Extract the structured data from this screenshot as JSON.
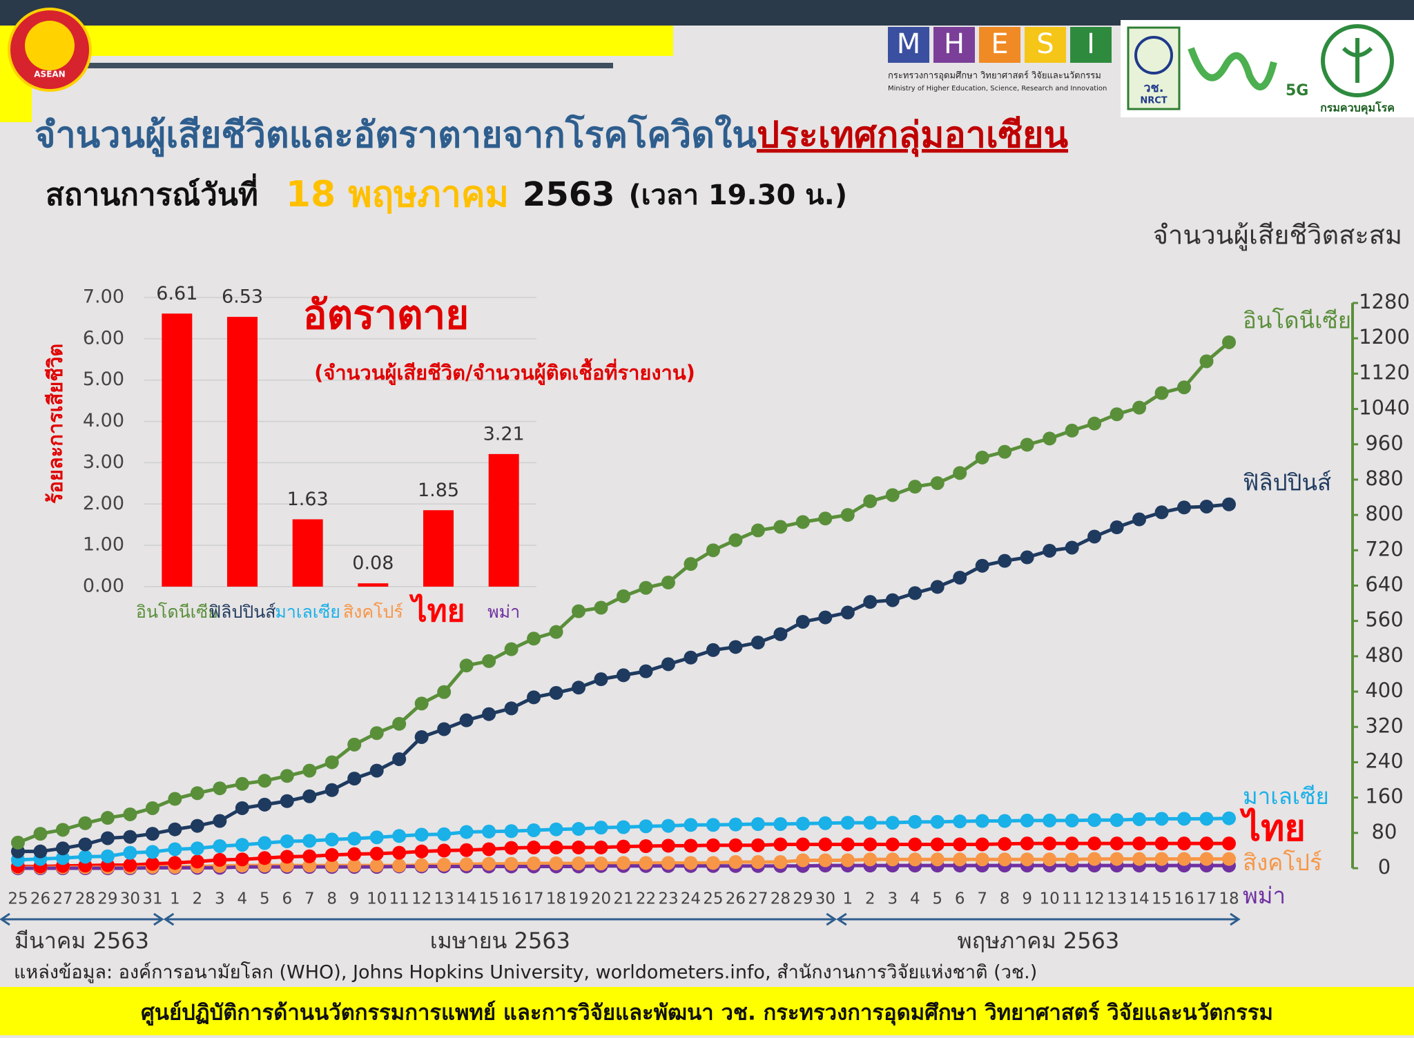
{
  "header": {
    "title": [
      "จำนวนผู้เสียชีวิตและอัตราตายจากโรคโควิดใน",
      "ประเทศกลุ่มอาเซียน"
    ],
    "subtitle": {
      "label": "สถานการณ์วันที่",
      "date": "18 พฤษภาคม",
      "year": "2563",
      "time": "(เวลา 19.30 น.)"
    }
  },
  "logos": {
    "mhesi_letters": [
      "M",
      "H",
      "E",
      "S",
      "I"
    ],
    "mhesi_th": "กระทรวงการอุดมศึกษา วิทยาศาสตร์ วิจัยและนวัตกรรม",
    "mhesi_en": "Ministry of Higher Education, Science, Research and Innovation",
    "nrct_th": "วช.",
    "nrct_en": "NRCT",
    "tag_5g": "5G",
    "ddc": "กรมควบคุมโรค",
    "asean": "ASEAN"
  },
  "chart_data": [
    {
      "type": "line",
      "y_axis_title": "จำนวนผู้เสียชีวิตสะสม",
      "y_axis_side": "right",
      "axis_color": "#5a8f3a",
      "categories": [
        "25",
        "26",
        "27",
        "28",
        "29",
        "30",
        "31",
        "1",
        "2",
        "3",
        "4",
        "5",
        "6",
        "7",
        "8",
        "9",
        "10",
        "11",
        "12",
        "13",
        "14",
        "15",
        "16",
        "17",
        "18",
        "19",
        "20",
        "21",
        "22",
        "23",
        "24",
        "25",
        "26",
        "27",
        "28",
        "29",
        "30",
        "1",
        "2",
        "3",
        "4",
        "5",
        "6",
        "7",
        "8",
        "9",
        "10",
        "11",
        "12",
        "13",
        "14",
        "15",
        "16",
        "17",
        "18"
      ],
      "month_labels": [
        "มีนาคม 2563",
        "เมษายน 2563",
        "พฤษภาคม 2563"
      ],
      "ylim": [
        0,
        1280
      ],
      "yticks": [
        0,
        80,
        160,
        240,
        320,
        400,
        480,
        560,
        640,
        720,
        800,
        880,
        960,
        1040,
        1120,
        1200,
        1280
      ],
      "series": [
        {
          "name": "อินโดนีเซีย",
          "color": "#5a8f3a",
          "emphasis": false,
          "values": [
            58,
            78,
            87,
            102,
            114,
            122,
            136,
            157,
            170,
            181,
            191,
            198,
            209,
            221,
            240,
            280,
            306,
            327,
            373,
            399,
            459,
            469,
            496,
            520,
            535,
            582,
            590,
            616,
            635,
            647,
            689,
            720,
            743,
            765,
            773,
            784,
            792,
            800,
            831,
            845,
            864,
            872,
            895,
            930,
            943,
            959,
            973,
            991,
            1007,
            1028,
            1043,
            1076,
            1089,
            1148,
            1191
          ]
        },
        {
          "name": "ฟิลิปปินส์",
          "color": "#1f3a5f",
          "emphasis": false,
          "values": [
            38,
            38,
            45,
            54,
            68,
            71,
            78,
            88,
            96,
            107,
            136,
            144,
            152,
            163,
            177,
            203,
            221,
            247,
            297,
            315,
            335,
            349,
            362,
            387,
            397,
            409,
            428,
            437,
            446,
            462,
            477,
            494,
            501,
            511,
            530,
            558,
            568,
            579,
            603,
            607,
            623,
            637,
            658,
            685,
            696,
            704,
            719,
            726,
            751,
            772,
            790,
            806,
            817,
            819,
            824
          ]
        },
        {
          "name": "มาเลเซีย",
          "color": "#1ab0e8",
          "emphasis": false,
          "values": [
            19,
            21,
            23,
            26,
            27,
            35,
            37,
            43,
            45,
            50,
            53,
            57,
            61,
            62,
            65,
            67,
            70,
            73,
            76,
            77,
            82,
            83,
            84,
            86,
            88,
            89,
            92,
            93,
            95,
            96,
            98,
            98,
            99,
            100,
            100,
            101,
            102,
            103,
            103,
            103,
            105,
            105,
            106,
            107,
            107,
            108,
            108,
            108,
            109,
            109,
            111,
            112,
            112,
            112,
            113
          ]
        },
        {
          "name": "ไทย",
          "color": "#ff0000",
          "emphasis": true,
          "values": [
            4,
            4,
            5,
            6,
            7,
            7,
            10,
            12,
            15,
            19,
            20,
            23,
            26,
            27,
            30,
            32,
            33,
            35,
            38,
            40,
            41,
            43,
            46,
            47,
            47,
            47,
            47,
            49,
            50,
            51,
            51,
            52,
            52,
            52,
            54,
            54,
            54,
            54,
            54,
            54,
            54,
            54,
            54,
            54,
            55,
            56,
            56,
            56,
            56,
            56,
            56,
            56,
            56,
            56,
            56
          ]
        },
        {
          "name": "สิงคโปร์",
          "color": "#f79646",
          "emphasis": false,
          "values": [
            2,
            2,
            2,
            2,
            2,
            2,
            3,
            3,
            4,
            5,
            6,
            6,
            6,
            6,
            6,
            6,
            6,
            6,
            7,
            8,
            9,
            10,
            10,
            11,
            11,
            11,
            11,
            12,
            12,
            12,
            12,
            12,
            14,
            14,
            14,
            18,
            18,
            18,
            20,
            20,
            20,
            20,
            20,
            20,
            20,
            20,
            20,
            20,
            21,
            21,
            21,
            21,
            21,
            21,
            21
          ]
        },
        {
          "name": "พม่า",
          "color": "#7030a0",
          "emphasis": false,
          "values": [
            0,
            0,
            0,
            0,
            0,
            0,
            1,
            1,
            1,
            1,
            3,
            3,
            3,
            3,
            3,
            3,
            3,
            4,
            4,
            4,
            4,
            4,
            4,
            4,
            4,
            4,
            5,
            5,
            5,
            5,
            5,
            5,
            5,
            5,
            5,
            5,
            6,
            6,
            6,
            6,
            6,
            6,
            6,
            6,
            6,
            6,
            6,
            6,
            6,
            6,
            6,
            6,
            6,
            6,
            6
          ]
        }
      ]
    },
    {
      "type": "bar",
      "title": "อัตราตาย",
      "subtitle": "(จำนวนผู้เสียชีวิต/จำนวนผู้ติดเชื้อที่รายงาน)",
      "y_axis_title": "ร้อยละการเสียชีวิต",
      "categories": [
        "อินโดนีเซีย",
        "ฟิลิปปินส์",
        "มาเลเซีย",
        "สิงคโปร์",
        "ไทย",
        "พม่า"
      ],
      "category_colors": [
        "#5a8f3a",
        "#1f3a5f",
        "#1ab0e8",
        "#f79646",
        "#ff0000",
        "#7030a0"
      ],
      "category_emphasis": [
        false,
        false,
        false,
        false,
        true,
        false
      ],
      "values": [
        6.61,
        6.53,
        1.63,
        0.08,
        1.85,
        3.21
      ],
      "color": "#ff0000",
      "ylim": [
        0,
        7
      ],
      "grid": true,
      "yticks": [
        {
          "value": 0,
          "label": "0.00"
        },
        {
          "value": 1,
          "label": "1.00"
        },
        {
          "value": 2,
          "label": "2.00"
        },
        {
          "value": 3,
          "label": "3.00"
        },
        {
          "value": 4,
          "label": "4.00"
        },
        {
          "value": 5,
          "label": "5.00"
        },
        {
          "value": 6,
          "label": "6.00"
        },
        {
          "value": 7,
          "label": "7.00"
        }
      ]
    }
  ],
  "source": "แหล่งข้อมูล: องค์การอนามัยโลก (WHO), Johns Hopkins University, worldometers.info, สำนักงานการวิจัยแห่งชาติ (วช.)",
  "footer": "ศูนย์ปฏิบัติการด้านนวัตกรรมการแพทย์ และการวิจัยและพัฒนา วช.   กระทรวงการอุดมศึกษา วิทยาศาสตร์ วิจัยและนวัตกรรม"
}
